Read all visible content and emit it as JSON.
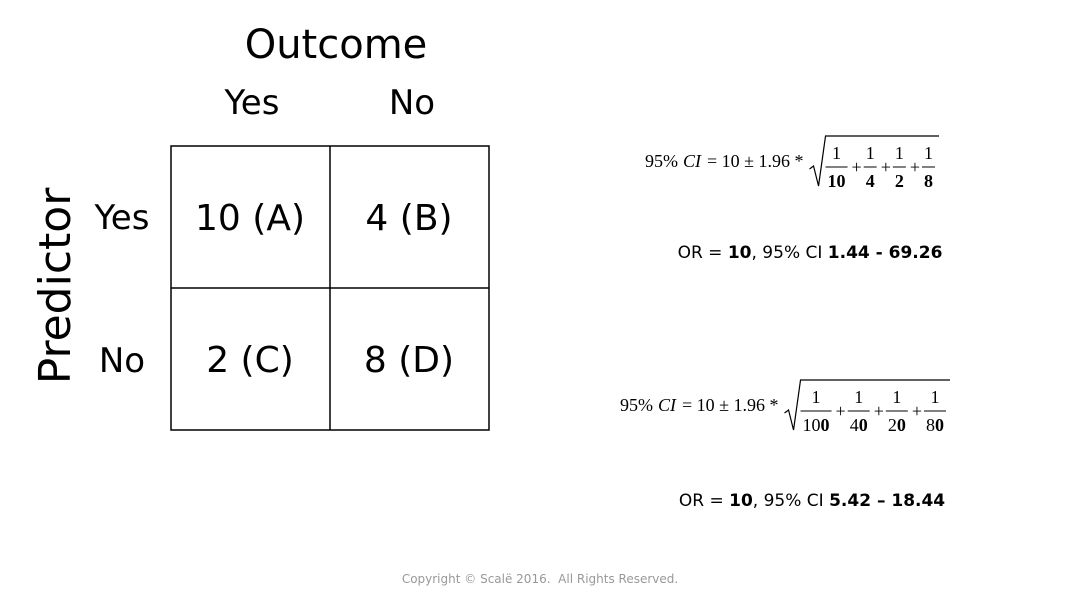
{
  "table": {
    "column_header": "Outcome",
    "columns": [
      "Yes",
      "No"
    ],
    "row_header": "Predictor",
    "rows": [
      "Yes",
      "No"
    ],
    "cells": [
      [
        "10 (A)",
        "4 (B)"
      ],
      [
        "2 (C)",
        "8 (D)"
      ]
    ]
  },
  "formulas": [
    {
      "label": "95%",
      "symbol": "CI",
      "expression": "= 10 ± 1.96 *",
      "operator": "+",
      "fractions": [
        {
          "num": "1",
          "den_bold": "10"
        },
        {
          "num": "1",
          "den_bold": "4"
        },
        {
          "num": "1",
          "den_bold": "2"
        },
        {
          "num": "1",
          "den_bold": "8"
        }
      ]
    },
    {
      "label": "95%",
      "symbol": "CI",
      "expression": "= 10 ± 1.96 *",
      "operator": "+",
      "fractions": [
        {
          "num": "1",
          "den_plain": "10",
          "den_bold": "0"
        },
        {
          "num": "1",
          "den_plain": "4",
          "den_bold": "0"
        },
        {
          "num": "1",
          "den_plain": "2",
          "den_bold": "0"
        },
        {
          "num": "1",
          "den_plain": "8",
          "den_bold": "0"
        }
      ]
    }
  ],
  "results": [
    {
      "parts": [
        {
          "text": "OR = "
        },
        {
          "text": "10",
          "bold": true
        },
        {
          "text": ", 95% CI "
        },
        {
          "text": "1.44 - 69.26",
          "bold": true
        }
      ]
    },
    {
      "parts": [
        {
          "text": "OR = "
        },
        {
          "text": "10",
          "bold": true
        },
        {
          "text": ", 95% CI "
        },
        {
          "text": "5.42 – 18.44",
          "bold": true
        }
      ]
    }
  ],
  "footer": "Copyright © Scalë 2016.  All Rights Reserved."
}
